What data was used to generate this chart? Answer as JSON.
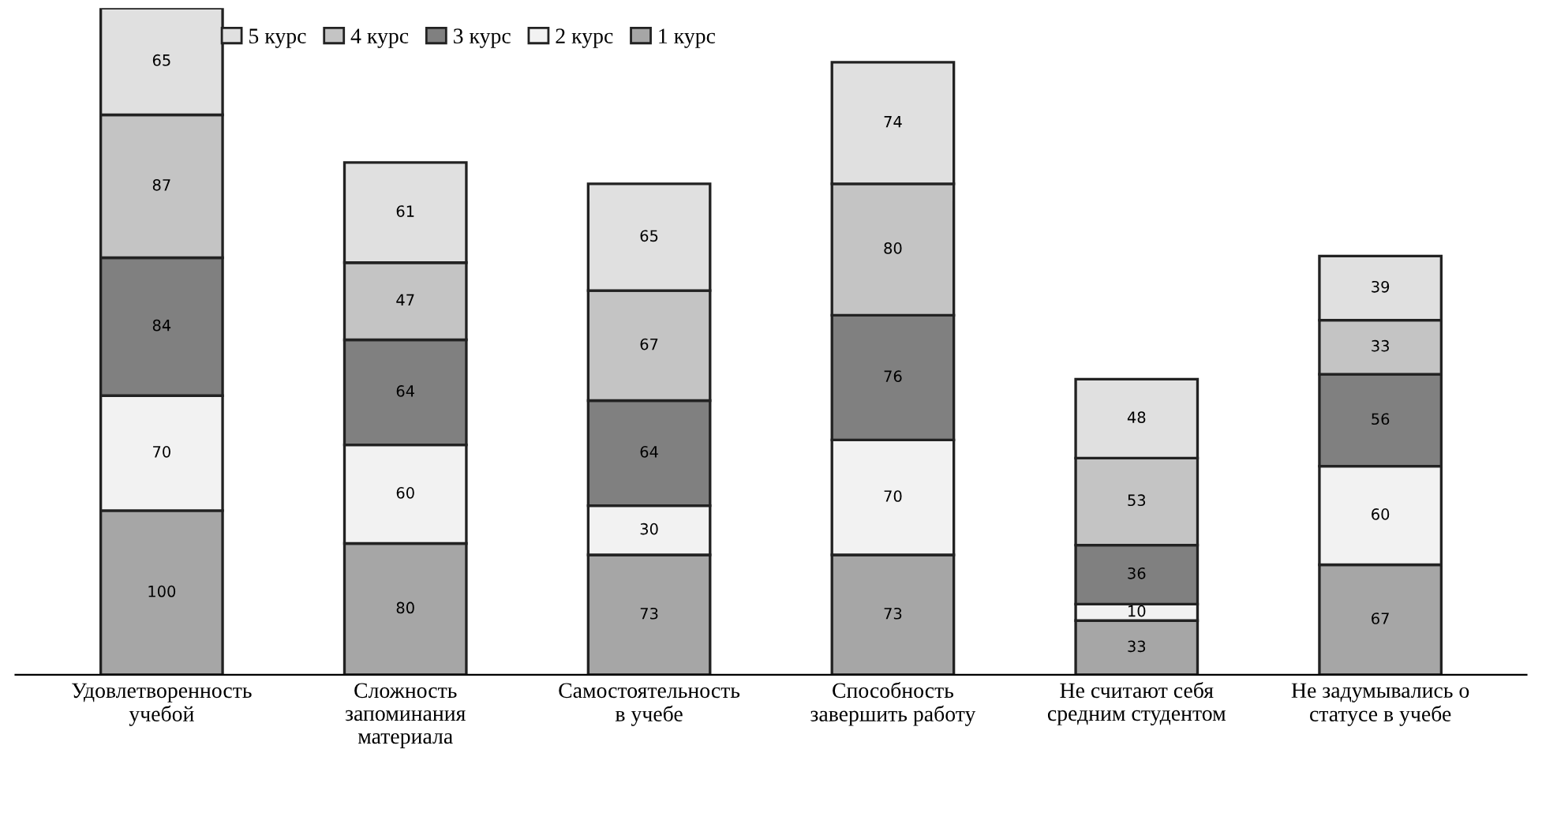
{
  "chart_data": {
    "type": "bar",
    "stacked": true,
    "data_labels": true,
    "legend": "top",
    "grid": false,
    "categories": [
      "Удовлетворенность учебой",
      "Сложность запоминания материала",
      "Самостоятельность в учебе",
      "Способность завершить работу",
      "Не считают себя средним студентом",
      "Не задумывались о статусе в учебе"
    ],
    "series": [
      {
        "name": "1 курс",
        "color": "#a6a6a6",
        "values": [
          100,
          80,
          73,
          73,
          33,
          67
        ]
      },
      {
        "name": "2 курс",
        "color": "#f2f2f2",
        "values": [
          70,
          60,
          30,
          70,
          10,
          60
        ]
      },
      {
        "name": "3 курс",
        "color": "#808080",
        "values": [
          84,
          64,
          64,
          76,
          36,
          56
        ]
      },
      {
        "name": "4 курс",
        "color": "#c4c4c4",
        "values": [
          87,
          47,
          67,
          80,
          53,
          33
        ]
      },
      {
        "name": "5 курс",
        "color": "#e0e0e0",
        "values": [
          65,
          61,
          65,
          74,
          48,
          39
        ]
      }
    ]
  }
}
